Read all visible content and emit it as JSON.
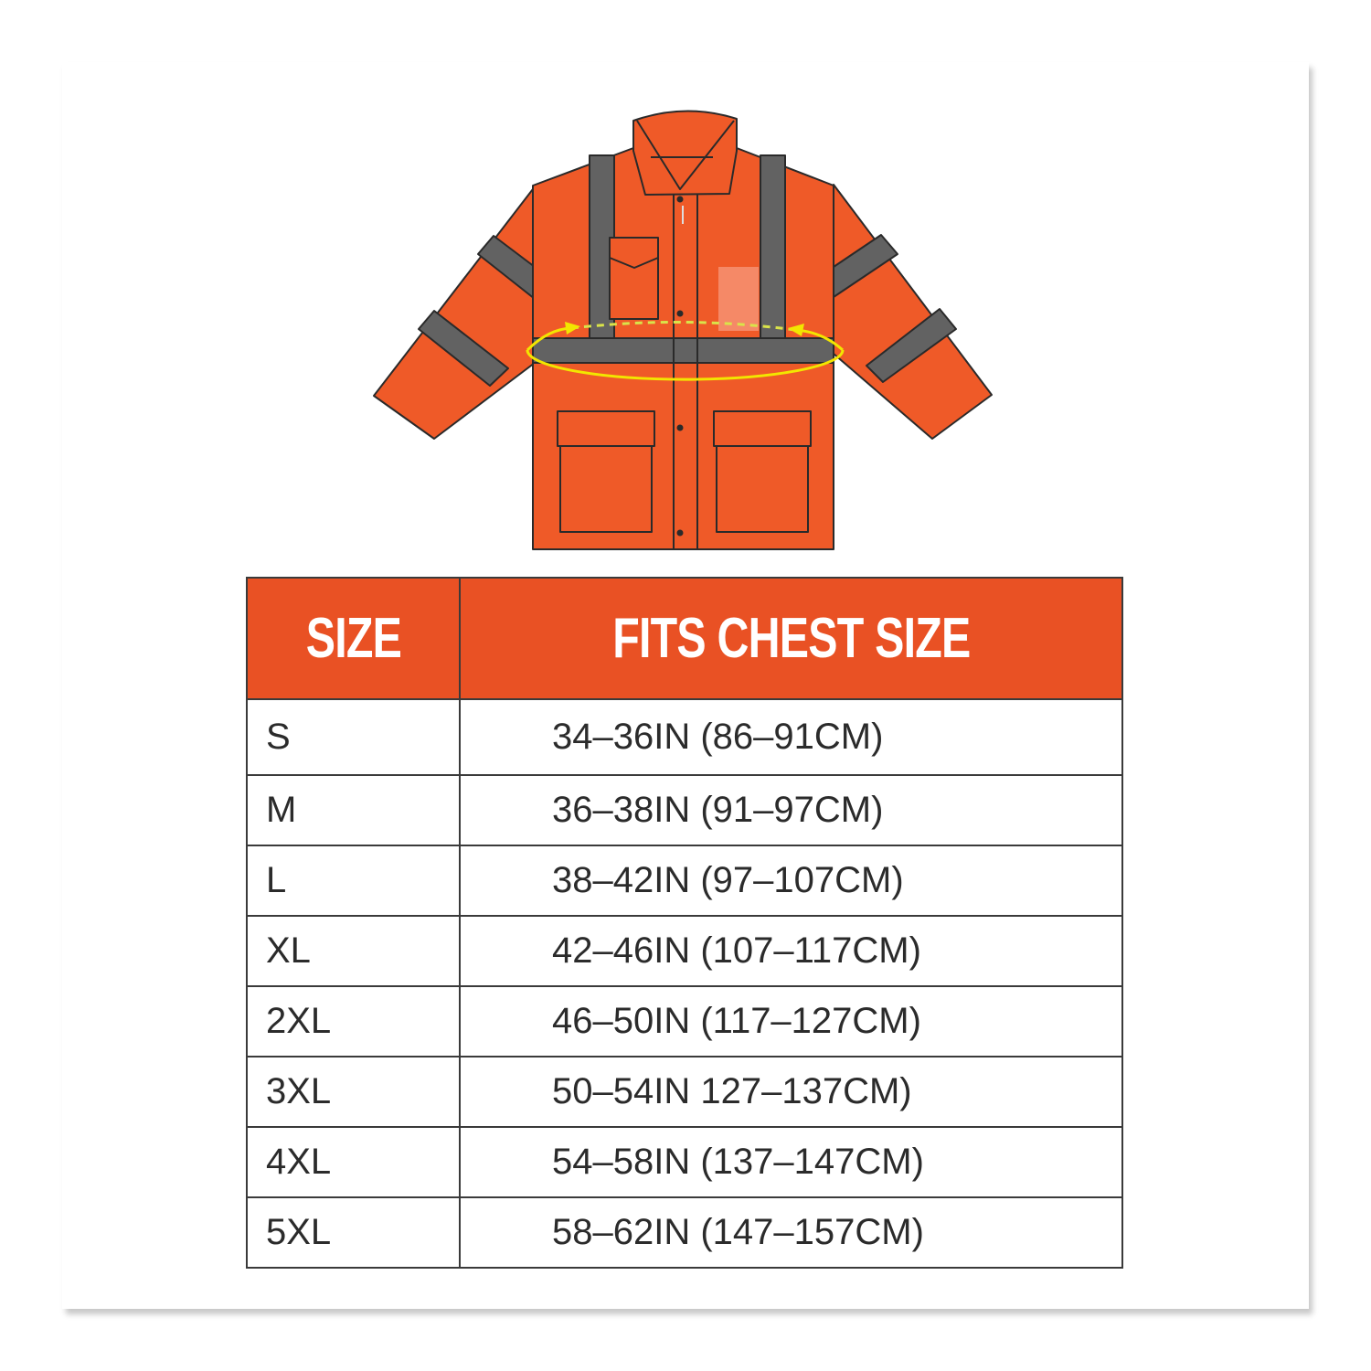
{
  "colors": {
    "header_bg": "#e95124",
    "jacket_orange": "#ef5a28",
    "reflective_gray": "#626262",
    "measure_yellow": "#f2e600"
  },
  "illustration": {
    "subject": "hi-vis jacket with chest measurement indicator"
  },
  "table": {
    "headers": [
      "SIZE",
      "FITS CHEST SIZE"
    ],
    "rows": [
      {
        "size": "S",
        "chest": "34–36IN (86–91CM)"
      },
      {
        "size": "M",
        "chest": "36–38IN (91–97CM)"
      },
      {
        "size": "L",
        "chest": "38–42IN (97–107CM)"
      },
      {
        "size": "XL",
        "chest": "42–46IN (107–117CM)"
      },
      {
        "size": "2XL",
        "chest": "46–50IN (117–127CM)"
      },
      {
        "size": "3XL",
        "chest": "50–54IN 127–137CM)"
      },
      {
        "size": "4XL",
        "chest": "54–58IN (137–147CM)"
      },
      {
        "size": "5XL",
        "chest": "58–62IN (147–157CM)"
      }
    ]
  }
}
